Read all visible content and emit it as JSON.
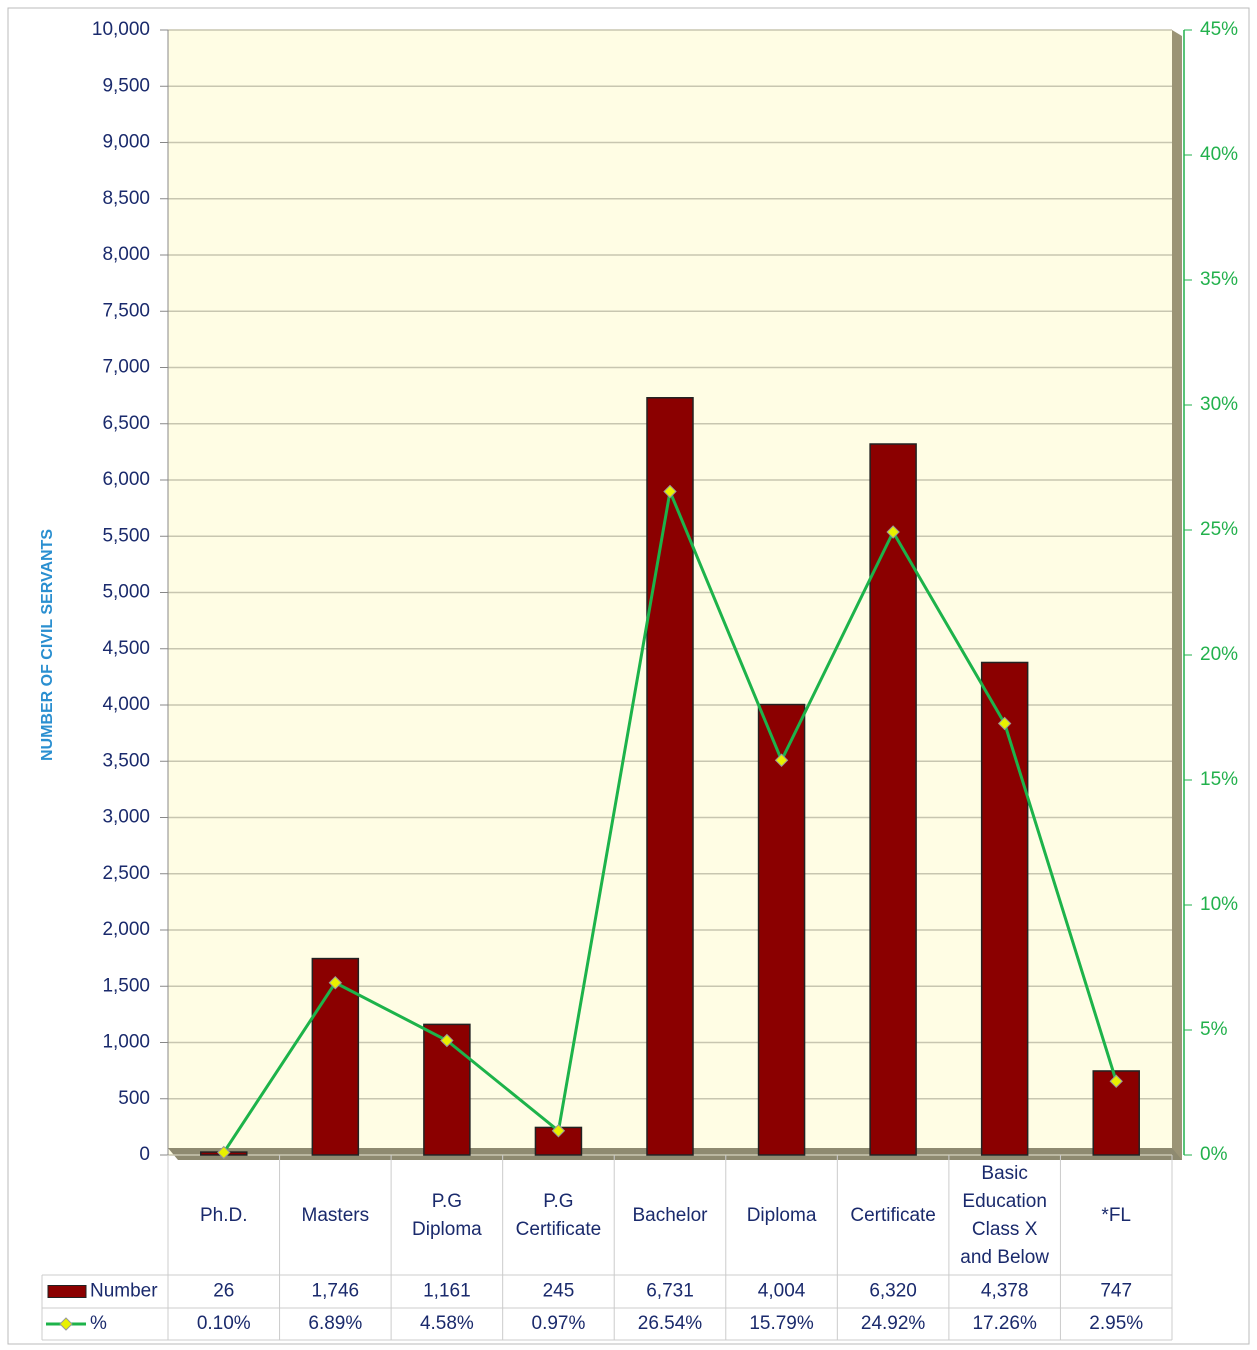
{
  "chart_data": {
    "type": "bar",
    "y_label": "NUMBER OF CIVIL SERVANTS",
    "categories": [
      "Ph.D.",
      "Masters",
      "P.G\nDiploma",
      "P.G\nCertificate",
      "Bachelor",
      "Diploma",
      "Certificate",
      "Basic\nEducation\nClass X\nand Below",
      "*FL"
    ],
    "series": [
      {
        "name": "Number",
        "type": "bar",
        "color": "#8b0000",
        "values": [
          26,
          1746,
          1161,
          245,
          6731,
          4004,
          6320,
          4378,
          747
        ],
        "value_labels": [
          "26",
          "1,746",
          "1,161",
          "245",
          "6,731",
          "4,004",
          "6,320",
          "4,378",
          "747"
        ]
      },
      {
        "name": "%",
        "type": "line",
        "axis": "y2",
        "color": "#1db34a",
        "marker_color": "#e8f000",
        "values": [
          0.1,
          6.89,
          4.58,
          0.97,
          26.54,
          15.79,
          24.92,
          17.26,
          2.95
        ],
        "value_labels": [
          "0.10%",
          "6.89%",
          "4.58%",
          "0.97%",
          "26.54%",
          "15.79%",
          "24.92%",
          "17.26%",
          "2.95%"
        ]
      }
    ],
    "ylim": [
      0,
      10000
    ],
    "yticks": [
      0,
      500,
      {
        "value": 1000,
        "label": "1,000"
      },
      {
        "value": 1500,
        "label": "1,500"
      },
      {
        "value": 2000,
        "label": "2,000"
      },
      {
        "value": 2500,
        "label": "2,500"
      },
      {
        "value": 3000,
        "label": "3,000"
      },
      {
        "value": 3500,
        "label": "3,500"
      },
      {
        "value": 4000,
        "label": "4,000"
      },
      {
        "value": 4500,
        "label": "4,500"
      },
      {
        "value": 5000,
        "label": "5,000"
      },
      {
        "value": 5500,
        "label": "5,500"
      },
      {
        "value": 6000,
        "label": "6,000"
      },
      {
        "value": 6500,
        "label": "6,500"
      },
      {
        "value": 7000,
        "label": "7,000"
      },
      {
        "value": 7500,
        "label": "7,500"
      },
      {
        "value": 8000,
        "label": "8,000"
      },
      {
        "value": 8500,
        "label": "8,500"
      },
      {
        "value": 9000,
        "label": "9,000"
      },
      {
        "value": 9500,
        "label": "9,500"
      },
      {
        "value": 10000,
        "label": "10,000"
      }
    ],
    "y2lim": [
      0,
      45
    ],
    "y2ticks": [
      {
        "value": 0,
        "label": "0%"
      },
      {
        "value": 5,
        "label": "5%"
      },
      {
        "value": 10,
        "label": "10%"
      },
      {
        "value": 15,
        "label": "15%"
      },
      {
        "value": 20,
        "label": "20%"
      },
      {
        "value": 25,
        "label": "25%"
      },
      {
        "value": 30,
        "label": "30%"
      },
      {
        "value": 35,
        "label": "35%"
      },
      {
        "value": 40,
        "label": "40%"
      },
      {
        "value": 45,
        "label": "45%"
      }
    ],
    "grid": true
  }
}
